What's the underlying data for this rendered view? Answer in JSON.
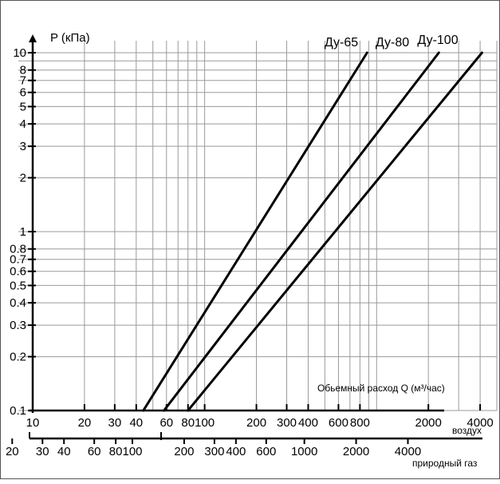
{
  "chart_data": {
    "type": "line",
    "title": "",
    "ylabel": "P (кПа)",
    "xlabel": "Обьемный расход Q (м³/час)",
    "x_axis_primary": {
      "name": "воздух",
      "scale": "log",
      "range": [
        10,
        5000
      ],
      "tick_labels": [
        "10",
        "20",
        "30",
        "40",
        "60",
        "80",
        "100",
        "200",
        "300",
        "400",
        "600",
        "800",
        "2000",
        "4000"
      ],
      "tick_values": [
        10,
        20,
        30,
        40,
        60,
        80,
        100,
        200,
        300,
        400,
        600,
        800,
        2000,
        4000
      ]
    },
    "x_axis_secondary": {
      "name": "природный газ",
      "scale": "log",
      "tick_labels": [
        "20",
        "30",
        "40",
        "60",
        "80",
        "100",
        "200",
        "300",
        "400",
        "600",
        "1000",
        "2000",
        "4000"
      ],
      "tick_values": [
        20,
        30,
        40,
        60,
        80,
        100,
        200,
        300,
        400,
        600,
        1000,
        2000,
        4000
      ]
    },
    "y_axis": {
      "scale": "log",
      "range": [
        0.1,
        10
      ],
      "tick_labels": [
        "0.1",
        "0.2",
        "0.3",
        "0.4",
        "0.5",
        "0.6",
        "0.7",
        "0.8",
        "1",
        "2",
        "3",
        "4",
        "5",
        "6",
        "7",
        "8",
        "10"
      ],
      "tick_values": [
        0.1,
        0.2,
        0.3,
        0.4,
        0.5,
        0.6,
        0.7,
        0.8,
        1,
        2,
        3,
        4,
        5,
        6,
        7,
        8,
        10
      ]
    },
    "grid": true,
    "series": [
      {
        "name": "Ду-65",
        "points": [
          [
            44,
            0.1
          ],
          [
            880,
            10
          ]
        ]
      },
      {
        "name": "Ду-80",
        "points": [
          [
            58,
            0.1
          ],
          [
            2300,
            10
          ]
        ]
      },
      {
        "name": "Ду-100",
        "points": [
          [
            80,
            0.1
          ],
          [
            4100,
            10
          ]
        ]
      }
    ]
  }
}
